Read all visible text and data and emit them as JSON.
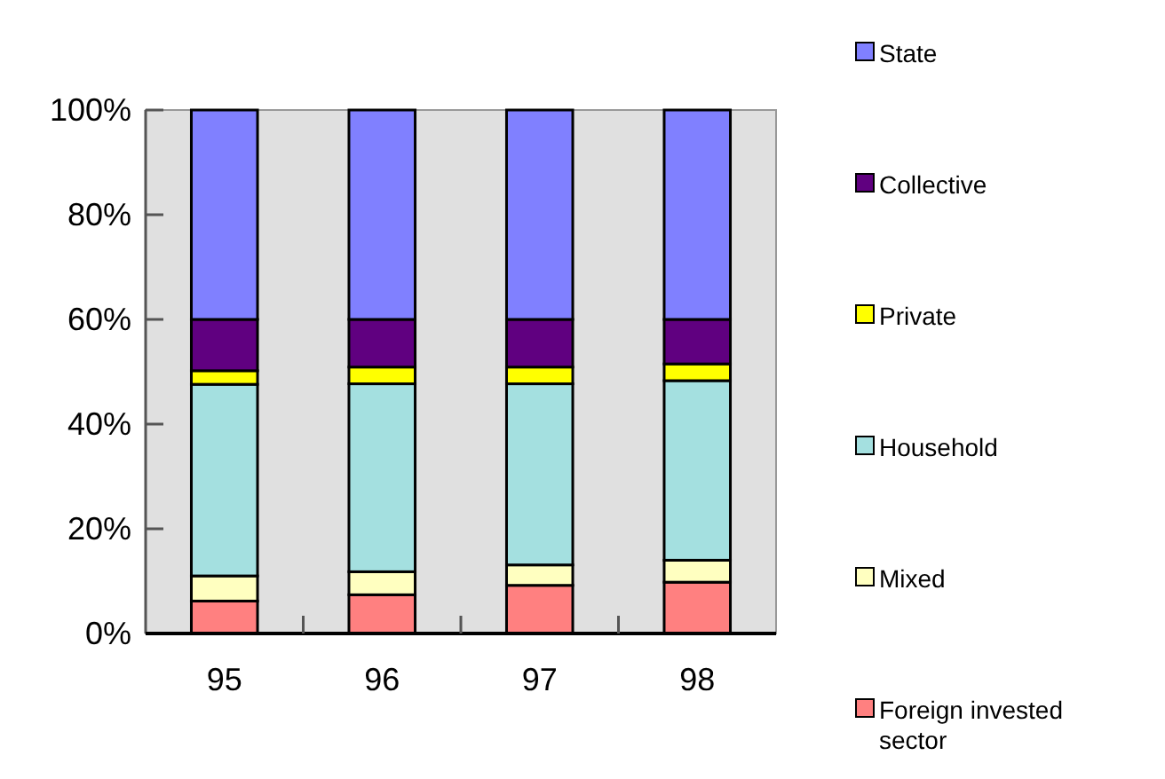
{
  "chart_data": {
    "type": "bar",
    "stacked": true,
    "categories": [
      "95",
      "96",
      "97",
      "98"
    ],
    "series": [
      {
        "name": "Foreign invested sector",
        "color": "#ff8080",
        "values": [
          6.2,
          7.4,
          9.2,
          9.8
        ]
      },
      {
        "name": "Mixed",
        "color": "#ffffc0",
        "values": [
          4.8,
          4.4,
          3.9,
          4.2
        ]
      },
      {
        "name": "Household",
        "color": "#a4e0e0",
        "values": [
          36.6,
          35.9,
          34.6,
          34.3
        ]
      },
      {
        "name": "Private",
        "color": "#ffff00",
        "values": [
          2.6,
          3.2,
          3.2,
          3.2
        ]
      },
      {
        "name": "Collective",
        "color": "#600080",
        "values": [
          9.8,
          9.1,
          9.1,
          8.5
        ]
      },
      {
        "name": "State",
        "color": "#8080ff",
        "values": [
          40,
          40,
          40,
          40
        ]
      }
    ],
    "ylim": [
      0,
      100
    ],
    "yticks": [
      {
        "value": 0,
        "label": "0%"
      },
      {
        "value": 20,
        "label": "20%"
      },
      {
        "value": 40,
        "label": "40%"
      },
      {
        "value": 60,
        "label": "60%"
      },
      {
        "value": 80,
        "label": "80%"
      },
      {
        "value": 100,
        "label": "100%"
      }
    ],
    "grid": false,
    "legend": "right"
  }
}
